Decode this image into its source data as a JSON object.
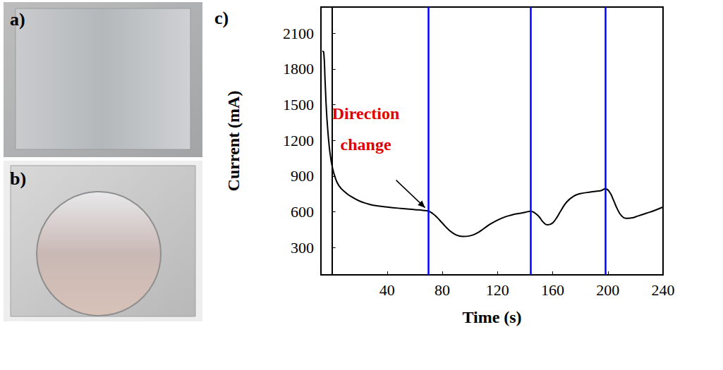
{
  "panels": [
    {
      "label": "a)"
    },
    {
      "label": "b)"
    }
  ],
  "chart_data": {
    "panel_label": "c)",
    "type": "line",
    "x_label": "Time (s)",
    "y_label": "Current (mA)",
    "x": [
      -7,
      -6,
      -5,
      -4,
      -3,
      -2,
      -1,
      0,
      2,
      5,
      10,
      15,
      20,
      25,
      30,
      40,
      50,
      60,
      66,
      70,
      73,
      76,
      80,
      85,
      90,
      95,
      100,
      105,
      110,
      115,
      120,
      125,
      130,
      135,
      140,
      144,
      147,
      150,
      153,
      156,
      159,
      162,
      166,
      170,
      175,
      180,
      185,
      190,
      195,
      198,
      201,
      204,
      207,
      210,
      213,
      217,
      222,
      228,
      234,
      240
    ],
    "series": [
      {
        "color": "#000000",
        "values": [
          1950,
          1940,
          1700,
          1450,
          1280,
          1150,
          1060,
          990,
          900,
          820,
          760,
          720,
          690,
          670,
          655,
          640,
          628,
          618,
          612,
          605,
          585,
          555,
          505,
          445,
          405,
          392,
          398,
          420,
          458,
          498,
          530,
          555,
          572,
          585,
          595,
          605,
          590,
          560,
          515,
          490,
          498,
          535,
          610,
          680,
          730,
          752,
          762,
          770,
          778,
          792,
          770,
          700,
          620,
          565,
          545,
          548,
          565,
          588,
          612,
          640
        ]
      }
    ],
    "vlines": {
      "x": [
        70,
        144,
        198
      ],
      "color": "#0000ff"
    },
    "annotations": [
      {
        "text": "Direction change",
        "x": 70,
        "y": 605,
        "color": "#e00000"
      }
    ],
    "xlim": [
      -8,
      240
    ],
    "xticks": [
      40,
      80,
      120,
      160,
      200,
      240
    ],
    "ylim": [
      70,
      2320
    ],
    "yticks": [
      300,
      600,
      900,
      1200,
      1500,
      1800,
      2100
    ],
    "grid": false
  }
}
